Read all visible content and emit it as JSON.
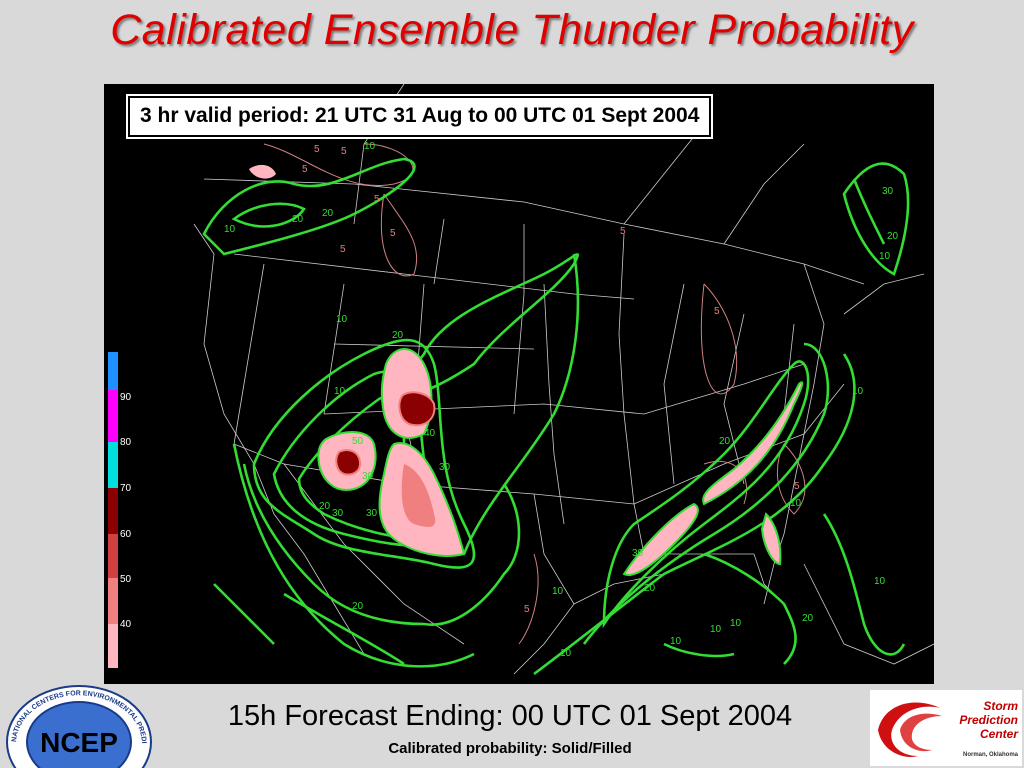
{
  "title": "Calibrated Ensemble Thunder Probability",
  "valid_period": "3 hr valid period: 21 UTC 31 Aug to 00 UTC 01 Sept 2004",
  "forecast_line": "15h Forecast Ending: 00 UTC 01 Sept 2004",
  "subline": "Calibrated probability: Solid/Filled",
  "legend": {
    "levels": [
      "40",
      "50",
      "60",
      "70",
      "80",
      "90"
    ],
    "colors": {
      "below_40": "#000000",
      "p40": "#ffb6c1",
      "p50": "#f08080",
      "p60": "#d04040",
      "p70": "#8b0000",
      "p80": "#00dede",
      "p90": "#ff00ff",
      "top": "#1e90ff"
    }
  },
  "map": {
    "contour_color": "#33dd33",
    "contour_label_color": "#33dd33",
    "reference_contour_color": "#d08080",
    "border_color": "#ffffff",
    "contour_labels": [
      "10",
      "10",
      "10",
      "20",
      "20",
      "20",
      "20",
      "30",
      "30",
      "30",
      "30",
      "40",
      "50",
      "10",
      "10",
      "20",
      "20",
      "30",
      "10",
      "20",
      "10",
      "10",
      "10",
      "20",
      "10",
      "30",
      "20",
      "10",
      "10",
      "10"
    ],
    "reference_labels": [
      "5",
      "5",
      "5",
      "5",
      "5",
      "5",
      "5",
      "5",
      "5",
      "5"
    ]
  },
  "logos": {
    "ncep_text": "NCEP",
    "ncep_ring": "NATIONAL CENTERS FOR ENVIRONMENTAL PREDICTION",
    "spc_lines": [
      "Storm",
      "Prediction",
      "Center"
    ],
    "spc_small": "Norman, Oklahoma"
  }
}
